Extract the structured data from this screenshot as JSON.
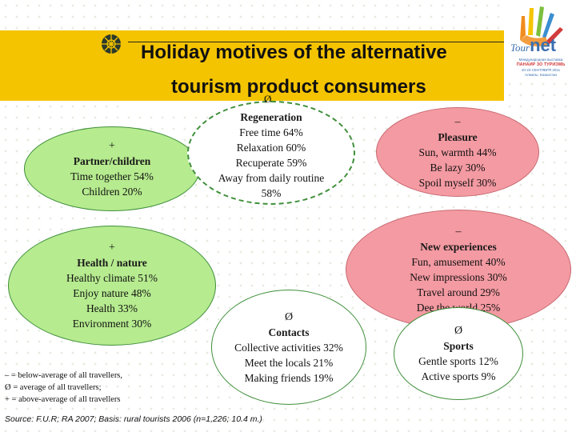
{
  "title": {
    "line1": "Holiday motives of the alternative",
    "line2": "tourism product consumers",
    "line2_symbol": "Ø"
  },
  "logo": {
    "brand_a": "Tour",
    "brand_b": "net",
    "line1": "Международная выставка",
    "line2": "ПАНАИР ЗО ТУРИЗМЬ",
    "line3": "20-23 СЕНТЯБРЯ 2011",
    "line4": "Алматы, Казахстан"
  },
  "motives": [
    {
      "id": "partner-children",
      "symbol": "+",
      "heading": "Partner/children",
      "lines": [
        "Time together 54%",
        "Children 20%"
      ]
    },
    {
      "id": "regeneration",
      "symbol": "Ø",
      "heading": "Regeneration",
      "lines": [
        "Free time 64%",
        "Relaxation 60%",
        "Recuperate  59%",
        "Away from daily routine",
        "58%"
      ]
    },
    {
      "id": "pleasure",
      "symbol": "–",
      "heading": "Pleasure",
      "lines": [
        "Sun, warmth 44%",
        "Be lazy 30%",
        "Spoil myself 30%"
      ]
    },
    {
      "id": "health-nature",
      "symbol": "+",
      "heading": "Health / nature",
      "lines": [
        "Healthy climate 51%",
        "Enjoy nature 48%",
        "Health 33%",
        "Environment 30%"
      ]
    },
    {
      "id": "new-experiences",
      "symbol": "–",
      "heading": "New experiences",
      "lines": [
        "Fun, amusement 40%",
        "New impressions 30%",
        "Travel around 29%",
        "Dee the world 25%"
      ]
    },
    {
      "id": "contacts",
      "symbol": "Ø",
      "heading": "Contacts",
      "lines": [
        "Collective activities 32%",
        "Meet the locals 21%",
        "Making friends 19%"
      ]
    },
    {
      "id": "sports",
      "symbol": "Ø",
      "heading": "Sports",
      "lines": [
        "Gentle sports 12%",
        "Active sports 9%"
      ]
    }
  ],
  "legend": [
    "– = below-average of all travellers,",
    "Ø = average of all travellers;",
    "+ = above-average of all travellers"
  ],
  "source": "Source: F.U.R; RA 2007; Basis: rural tourists 2006 (n=1,226; 10.4 m.)",
  "colors": {
    "title_band": "#f5c400",
    "above_average": "#b6eb8f",
    "below_average": "#f49aa2",
    "outline_green": "#3f8f3a",
    "logo_blue": "#3a6fb0",
    "logo_orange": "#f08c1e"
  }
}
